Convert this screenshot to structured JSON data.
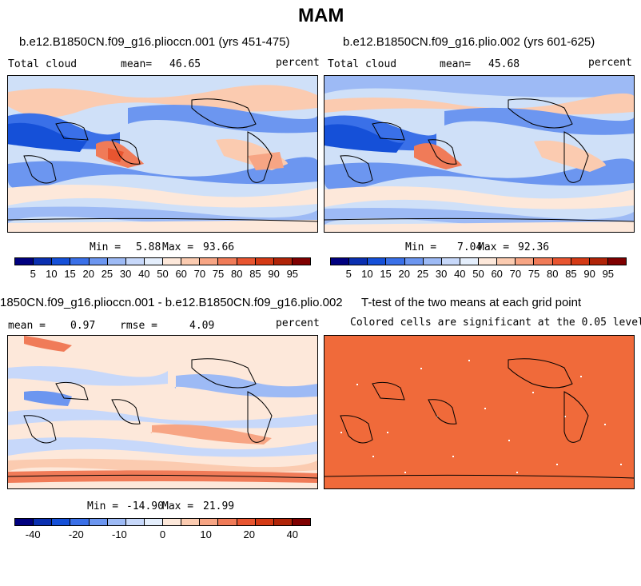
{
  "title": "MAM",
  "panels": [
    {
      "heading": "b.e12.B1850CN.f09_g16.pliocсn.001 (yrs 451-475)",
      "left_label": "Total cloud",
      "mean_label": "mean=",
      "mean_value": "46.65",
      "right_label": "percent",
      "min_label": "Min =",
      "min_value": "5.88",
      "max_label": "Max =",
      "max_value": "93.66"
    },
    {
      "heading": "b.e12.B1850CN.f09_g16.plio.002 (yrs 601-625)",
      "left_label": "Total cloud",
      "mean_label": "mean=",
      "mean_value": "45.68",
      "right_label": "percent",
      "min_label": "Min =",
      "min_value": "7.04",
      "max_label": "Max =",
      "max_value": "92.36"
    },
    {
      "heading": "1850CN.f09_g16.pliocсn.001 - b.e12.B1850CN.f09_g16.plio.002",
      "left_label": "mean =",
      "mean_label": "",
      "mean_value": "0.97",
      "rmse_label": "rmse =",
      "rmse_value": "4.09",
      "right_label": "percent",
      "min_label": "Min =",
      "min_value": "-14.90",
      "max_label": "Max =",
      "max_value": "21.99"
    },
    {
      "heading": "T-test of the two means at each grid point",
      "subheading": "Colored cells are significant at the 0.05 level"
    }
  ],
  "colorbar_top": {
    "colors": [
      "#00007f",
      "#0a2fb0",
      "#1550d8",
      "#3a70e8",
      "#6c96f0",
      "#9dbaf5",
      "#c7d8fa",
      "#e4eefc",
      "#fde8da",
      "#fbcbb0",
      "#f7a584",
      "#f07b58",
      "#e85530",
      "#d43a15",
      "#b02408",
      "#7f0000"
    ],
    "ticks": [
      "5",
      "10",
      "15",
      "20",
      "25",
      "30",
      "40",
      "50",
      "60",
      "70",
      "75",
      "80",
      "85",
      "90",
      "95"
    ]
  },
  "colorbar_diff": {
    "colors": [
      "#00007f",
      "#0a2fb0",
      "#1550d8",
      "#3a70e8",
      "#6c96f0",
      "#9dbaf5",
      "#c7d8fa",
      "#e4eefc",
      "#fde8da",
      "#fbcbb0",
      "#f7a584",
      "#f07b58",
      "#e85530",
      "#d43a15",
      "#b02408",
      "#7f0000"
    ],
    "ticks": [
      "-40",
      "-20",
      "-10",
      "0",
      "10",
      "20",
      "40"
    ]
  },
  "significance_color": "#f06a3a"
}
